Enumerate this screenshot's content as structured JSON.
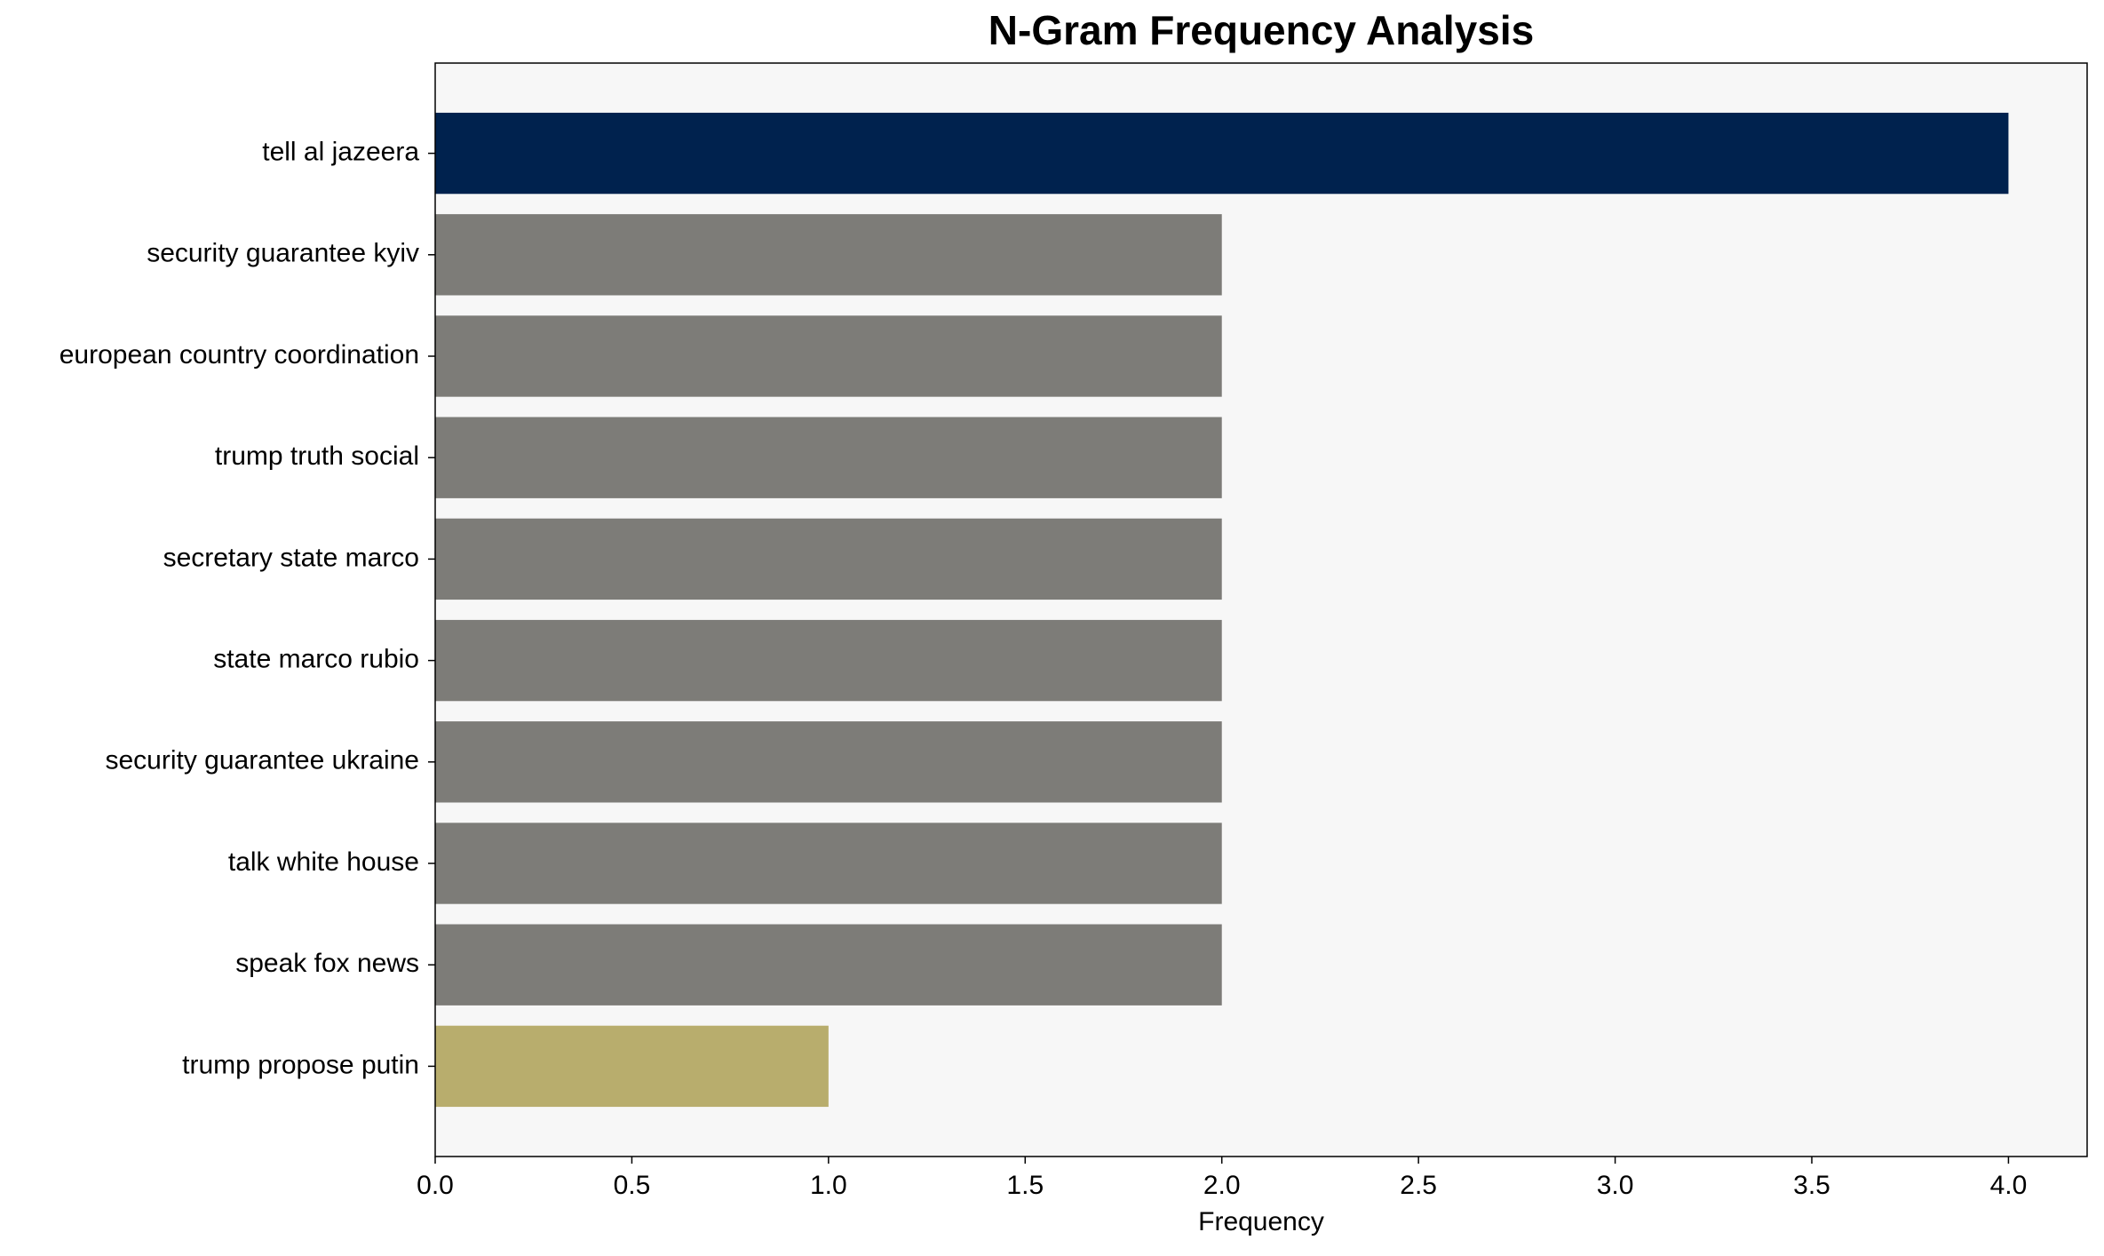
{
  "chart_data": {
    "type": "barh",
    "title": "N-Gram Frequency Analysis",
    "xlabel": "Frequency",
    "categories": [
      "tell al jazeera",
      "security guarantee kyiv",
      "european country coordination",
      "trump truth social",
      "secretary state marco",
      "state marco rubio",
      "security guarantee ukraine",
      "talk white house",
      "speak fox news",
      "trump propose putin"
    ],
    "values": [
      4,
      2,
      2,
      2,
      2,
      2,
      2,
      2,
      2,
      1
    ],
    "colors": [
      "#00224e",
      "#7d7c78",
      "#7d7c78",
      "#7d7c78",
      "#7d7c78",
      "#7d7c78",
      "#7d7c78",
      "#7d7c78",
      "#7d7c78",
      "#b8ad6d"
    ],
    "xlim": [
      0,
      4.2
    ],
    "xticks": [
      {
        "value": 0,
        "label": "0.0"
      },
      {
        "value": 0.5,
        "label": "0.5"
      },
      {
        "value": 1,
        "label": "1.0"
      },
      {
        "value": 1.5,
        "label": "1.5"
      },
      {
        "value": 2,
        "label": "2.0"
      },
      {
        "value": 2.5,
        "label": "2.5"
      },
      {
        "value": 3,
        "label": "3.0"
      },
      {
        "value": 3.5,
        "label": "3.5"
      },
      {
        "value": 4,
        "label": "4.0"
      }
    ]
  }
}
